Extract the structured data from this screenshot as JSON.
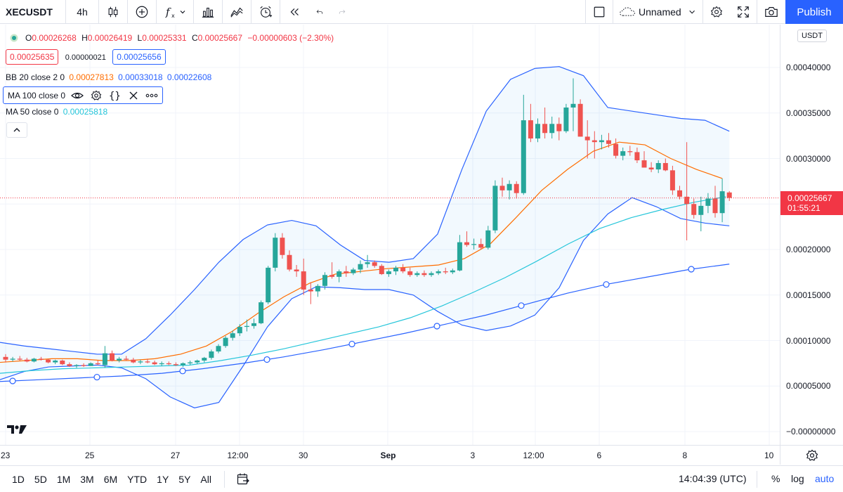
{
  "toolbar": {
    "symbol": "XECUSDT",
    "interval": "4h",
    "layout_name": "Unnamed",
    "publish_label": "Publish"
  },
  "legend": {
    "ohlc": {
      "o_label": "O",
      "o": "0.00026268",
      "h_label": "H",
      "h": "0.00026419",
      "l_label": "L",
      "l": "0.00025331",
      "c_label": "C",
      "c": "0.00025667",
      "change": "−0.00000603 (−2.30%)"
    },
    "bid": "0.00025635",
    "spread": "0.00000021",
    "ask": "0.00025656",
    "bb": {
      "label": "BB 20 close 2 0",
      "basis": "0.00027813",
      "upper": "0.00033018",
      "lower": "0.00022608"
    },
    "ma100": {
      "label": "MA 100 close 0"
    },
    "ma50": {
      "label": "MA 50 close 0",
      "value": "0.00025818"
    }
  },
  "price_axis": {
    "currency": "USDT",
    "ticks": [
      "0.00040000",
      "0.00035000",
      "0.00030000",
      "0.00025000",
      "0.00020000",
      "0.00015000",
      "0.00010000",
      "0.00005000",
      "−0.00000000"
    ],
    "current_price": "0.00025667",
    "countdown": "01:55:21"
  },
  "time_axis": {
    "ticks": [
      "23",
      "25",
      "27",
      "12:00",
      "30",
      "Sep",
      "3",
      "12:00",
      "6",
      "8",
      "10"
    ]
  },
  "bottom": {
    "ranges": [
      "1D",
      "5D",
      "1M",
      "3M",
      "6M",
      "YTD",
      "1Y",
      "5Y",
      "All"
    ],
    "clock": "14:04:39 (UTC)",
    "percent": "%",
    "log": "log",
    "auto": "auto"
  },
  "colors": {
    "up": "#26a69a",
    "down": "#ef5350",
    "bb_band": "#2962ff",
    "bb_basis": "#ff6d00",
    "ma50": "#26c6da",
    "ma100": "#2962ff",
    "accent": "#2962ff"
  },
  "chart_data": {
    "type": "candlestick",
    "price_range": [
      -1e-05,
      0.00042
    ],
    "candles": [
      [
        8.2e-05,
        8.5e-05,
        7.6e-05,
        7.9e-05
      ],
      [
        7.9e-05,
        8.2e-05,
        7.7e-05,
        8e-05
      ],
      [
        8e-05,
        8.3e-05,
        7.8e-05,
        7.9e-05
      ],
      [
        7.9e-05,
        8.1e-05,
        7.6e-05,
        7.7e-05
      ],
      [
        7.7e-05,
        8.1e-05,
        7.6e-05,
        8e-05
      ],
      [
        8e-05,
        8.2e-05,
        7.8e-05,
        7.9e-05
      ],
      [
        7.9e-05,
        8e-05,
        7.5e-05,
        7.6e-05
      ],
      [
        7.6e-05,
        7.9e-05,
        7.4e-05,
        7.8e-05
      ],
      [
        7.8e-05,
        7.9e-05,
        7.3e-05,
        7.4e-05
      ],
      [
        7.4e-05,
        7.6e-05,
        7.1e-05,
        7.2e-05
      ],
      [
        7.2e-05,
        7.4e-05,
        7e-05,
        7.3e-05
      ],
      [
        7.3e-05,
        7.5e-05,
        7.1e-05,
        7.2e-05
      ],
      [
        7.2e-05,
        7.6e-05,
        7.2e-05,
        7.5e-05
      ],
      [
        7.5e-05,
        7.8e-05,
        7.3e-05,
        7.4e-05
      ],
      [
        7.3e-05,
        9.4e-05,
        7e-05,
        8.6e-05
      ],
      [
        8.6e-05,
        8.9e-05,
        7.7e-05,
        7.8e-05
      ],
      [
        7.8e-05,
        8.2e-05,
        7.6e-05,
        8e-05
      ],
      [
        8e-05,
        8.3e-05,
        7.8e-05,
        7.9e-05
      ],
      [
        7.9e-05,
        8.1e-05,
        7.5e-05,
        7.6e-05
      ],
      [
        7.6e-05,
        7.9e-05,
        7.4e-05,
        7.7e-05
      ],
      [
        7.7e-05,
        8e-05,
        7.5e-05,
        7.6e-05
      ],
      [
        7.6e-05,
        7.8e-05,
        7.3e-05,
        7.4e-05
      ],
      [
        7.4e-05,
        7.7e-05,
        7.2e-05,
        7.5e-05
      ],
      [
        7.5e-05,
        7.7e-05,
        7.3e-05,
        7.4e-05
      ],
      [
        7.4e-05,
        7.6e-05,
        7.2e-05,
        7.3e-05
      ],
      [
        7.3e-05,
        7.6e-05,
        7.1e-05,
        7.5e-05
      ],
      [
        7.5e-05,
        7.8e-05,
        7.3e-05,
        7.6e-05
      ],
      [
        7.6e-05,
        7.9e-05,
        7.4e-05,
        7.8e-05
      ],
      [
        7.8e-05,
        8.2e-05,
        7.6e-05,
        8.1e-05
      ],
      [
        8.1e-05,
        9e-05,
        7.9e-05,
        8.8e-05
      ],
      [
        8.8e-05,
        9.6e-05,
        8.6e-05,
        9.4e-05
      ],
      [
        9.4e-05,
        0.000105,
        9.2e-05,
        0.000103
      ],
      [
        0.000103,
        0.000111,
        0.0001,
        0.000108
      ],
      [
        0.000108,
        0.000118,
        0.000105,
        0.000115
      ],
      [
        0.000115,
        0.000123,
        0.00011,
        0.000116
      ],
      [
        0.000116,
        0.000124,
        0.000113,
        0.000119
      ],
      [
        0.000119,
        0.000144,
        0.000118,
        0.000142
      ],
      [
        0.000142,
        0.000182,
        0.00014,
        0.00018
      ],
      [
        0.00018,
        0.000218,
        0.000176,
        0.000213
      ],
      [
        0.000213,
        0.000218,
        0.00019,
        0.000194
      ],
      [
        0.000194,
        0.000199,
        0.000176,
        0.000178
      ],
      [
        0.000178,
        0.000183,
        0.00017,
        0.000176
      ],
      [
        0.000176,
        0.00019,
        0.00015,
        0.000156
      ],
      [
        0.000156,
        0.000164,
        0.00014,
        0.000154
      ],
      [
        0.000154,
        0.000162,
        0.000148,
        0.00016
      ],
      [
        0.00016,
        0.000175,
        0.000156,
        0.000172
      ],
      [
        0.000172,
        0.000186,
        0.000168,
        0.00017
      ],
      [
        0.00017,
        0.000178,
        0.000164,
        0.000176
      ],
      [
        0.000176,
        0.000182,
        0.00017,
        0.000174
      ],
      [
        0.000174,
        0.00018,
        0.000172,
        0.000178
      ],
      [
        0.000178,
        0.000188,
        0.000174,
        0.000184
      ],
      [
        0.000184,
        0.000194,
        0.00018,
        0.000186
      ],
      [
        0.000186,
        0.000188,
        0.00018,
        0.000182
      ],
      [
        0.000182,
        0.000184,
        0.000172,
        0.000173
      ],
      [
        0.000173,
        0.000178,
        0.00017,
        0.000176
      ],
      [
        0.000176,
        0.000182,
        0.000172,
        0.00018
      ],
      [
        0.00018,
        0.000184,
        0.000174,
        0.000176
      ],
      [
        0.000176,
        0.00018,
        0.00017,
        0.000172
      ],
      [
        0.000172,
        0.000176,
        0.00017,
        0.000174
      ],
      [
        0.000174,
        0.000177,
        0.00017,
        0.000172
      ],
      [
        0.000172,
        0.000176,
        0.00017,
        0.000174
      ],
      [
        0.000174,
        0.000178,
        0.000172,
        0.000176
      ],
      [
        0.000176,
        0.00018,
        0.000173,
        0.000175
      ],
      [
        0.000175,
        0.000179,
        0.000173,
        0.000177
      ],
      [
        0.000177,
        0.000216,
        0.000176,
        0.000208
      ],
      [
        0.000208,
        0.00022,
        0.000203,
        0.000205
      ],
      [
        0.000205,
        0.000212,
        0.0002,
        0.000206
      ],
      [
        0.000206,
        0.000212,
        0.0002,
        0.000202
      ],
      [
        0.000202,
        0.000226,
        0.0002,
        0.000221
      ],
      [
        0.000221,
        0.000276,
        0.000218,
        0.00027
      ],
      [
        0.00027,
        0.000279,
        0.000258,
        0.000265
      ],
      [
        0.000265,
        0.000276,
        0.000255,
        0.000272
      ],
      [
        0.000272,
        0.000275,
        0.000256,
        0.000262
      ],
      [
        0.000262,
        0.00037,
        0.00026,
        0.000342
      ],
      [
        0.000342,
        0.00036,
        0.000318,
        0.000322
      ],
      [
        0.000322,
        0.000344,
        0.000318,
        0.000338
      ],
      [
        0.000338,
        0.000356,
        0.000322,
        0.000328
      ],
      [
        0.000328,
        0.000346,
        0.000322,
        0.000338
      ],
      [
        0.000338,
        0.000345,
        0.00032,
        0.00033
      ],
      [
        0.00033,
        0.00036,
        0.000328,
        0.000356
      ],
      [
        0.000356,
        0.000388,
        0.00033,
        0.00036
      ],
      [
        0.00036,
        0.000365,
        0.000324,
        0.000324
      ],
      [
        0.000324,
        0.000342,
        0.0003,
        0.00032
      ],
      [
        0.00032,
        0.00033,
        0.0003,
        0.000318
      ],
      [
        0.000318,
        0.000326,
        0.00031,
        0.00032
      ],
      [
        0.00032,
        0.000328,
        0.000312,
        0.000316
      ],
      [
        0.000316,
        0.000322,
        0.0003,
        0.000303
      ],
      [
        0.000303,
        0.000312,
        0.000298,
        0.000308
      ],
      [
        0.000308,
        0.000314,
        0.000303,
        0.000307
      ],
      [
        0.000307,
        0.000312,
        0.000295,
        0.000298
      ],
      [
        0.000298,
        0.000308,
        0.000293,
        0.00029
      ],
      [
        0.00029,
        0.000296,
        0.000285,
        0.000288
      ],
      [
        0.000288,
        0.000298,
        0.000284,
        0.000295
      ],
      [
        0.000295,
        0.0003,
        0.000286,
        0.000287
      ],
      [
        0.000287,
        0.000292,
        0.00026,
        0.000265
      ],
      [
        0.000265,
        0.00027,
        0.000255,
        0.000258
      ],
      [
        0.000258,
        0.000318,
        0.00021,
        0.00025
      ],
      [
        0.00025,
        0.000256,
        0.000234,
        0.000238
      ],
      [
        0.000238,
        0.000258,
        0.00022,
        0.000248
      ],
      [
        0.000248,
        0.000262,
        0.00024,
        0.000256
      ],
      [
        0.000256,
        0.00027,
        0.000235,
        0.00024
      ],
      [
        0.00024,
        0.000278,
        0.00023,
        0.000264
      ],
      [
        0.0002627,
        0.0002642,
        0.0002533,
        0.0002567
      ]
    ],
    "bb_upper": [
      9.8e-05,
      9.4e-05,
      9.1e-05,
      8.8e-05,
      8.5e-05,
      8.5e-05,
      0.000102,
      0.000128,
      0.000156,
      0.000186,
      0.000211,
      0.000227,
      0.000232,
      0.000226,
      0.000205,
      0.000188,
      0.000186,
      0.00019,
      0.000217,
      0.000288,
      0.000352,
      0.000387,
      0.000399,
      0.000401,
      0.000391,
      0.000356,
      0.000352,
      0.000348,
      0.000344,
      0.000342,
      0.00033
    ],
    "bb_lower": [
      5.7e-05,
      6.6e-05,
      7.1e-05,
      7.2e-05,
      7.3e-05,
      7e-05,
      5.8e-05,
      3.8e-05,
      2.6e-05,
      3.2e-05,
      7.2e-05,
      0.000115,
      0.000146,
      0.000159,
      0.000158,
      0.000156,
      0.000156,
      0.00015,
      0.000132,
      0.000117,
      0.000111,
      0.000116,
      0.000128,
      0.000158,
      0.00021,
      0.000239,
      0.000257,
      0.000247,
      0.000234,
      0.000229,
      0.000226
    ],
    "bb_basis": [
      7.6e-05,
      7.8e-05,
      8e-05,
      8e-05,
      7.8e-05,
      7.8e-05,
      8e-05,
      8.5e-05,
      9.4e-05,
      0.00011,
      0.00013,
      0.000148,
      0.000163,
      0.000173,
      0.000176,
      0.000179,
      0.000181,
      0.000183,
      0.00019,
      0.000206,
      0.000235,
      0.000265,
      0.000288,
      0.000308,
      0.000318,
      0.000315,
      0.0003,
      0.000288,
      0.000278
    ],
    "ma50": [
      6.4e-05,
      6.7e-05,
      6.9e-05,
      7e-05,
      7.1e-05,
      7.2e-05,
      7.3e-05,
      7.8e-05,
      8.4e-05,
      9.1e-05,
      9.9e-05,
      0.000107,
      0.000115,
      0.000125,
      0.000138,
      0.000153,
      0.000169,
      0.000187,
      0.000206,
      0.000223,
      0.000235,
      0.000244,
      0.000252,
      0.000258
    ],
    "ma100": [
      5.5e-05,
      5.7e-05,
      5.9e-05,
      6.1e-05,
      6.4e-05,
      6.9e-05,
      7.5e-05,
      8.2e-05,
      9e-05,
      9.9e-05,
      0.000108,
      0.000118,
      0.000128,
      0.00014,
      0.000152,
      0.000162,
      0.00017,
      0.000178,
      0.000184
    ]
  }
}
